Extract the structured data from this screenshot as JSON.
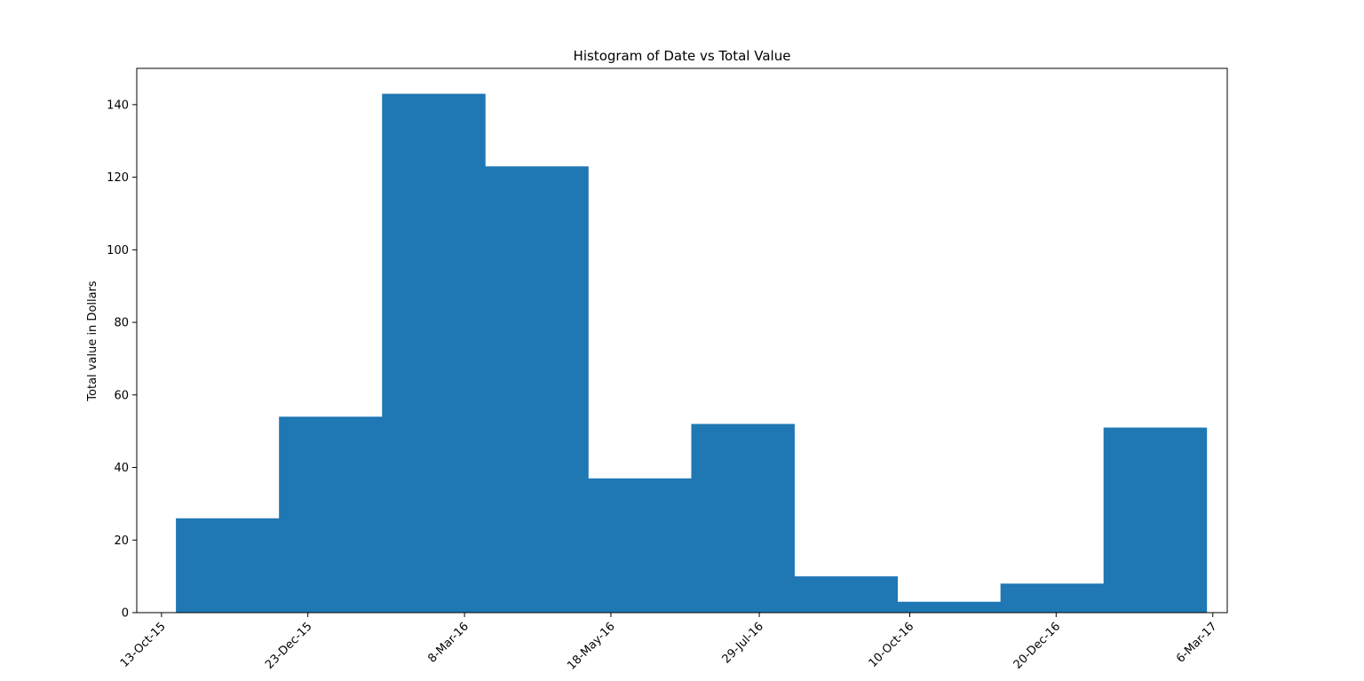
{
  "chart_data": {
    "type": "bar",
    "title": "Histogram of Date vs Total Value",
    "xlabel": "",
    "ylabel": "Total value in Dollars",
    "bar_color": "#1f77b4",
    "frame_color": "#000000",
    "background": "#ffffff",
    "grid": false,
    "legend": "none",
    "xlim": [
      "2015-10-01",
      "2017-03-13"
    ],
    "ylim": [
      0,
      150
    ],
    "yticks": [
      0,
      20,
      40,
      60,
      80,
      100,
      120,
      140
    ],
    "xticks": [
      {
        "date": "2015-10-13",
        "label": "13-Oct-15"
      },
      {
        "date": "2015-12-23",
        "label": "23-Dec-15"
      },
      {
        "date": "2016-03-08",
        "label": "8-Mar-16"
      },
      {
        "date": "2016-05-18",
        "label": "18-May-16"
      },
      {
        "date": "2016-07-29",
        "label": "29-Jul-16"
      },
      {
        "date": "2016-10-10",
        "label": "10-Oct-16"
      },
      {
        "date": "2016-12-20",
        "label": "20-Dec-16"
      },
      {
        "date": "2017-03-06",
        "label": "6-Mar-17"
      }
    ],
    "bins": [
      {
        "start": "2015-10-20",
        "end": "2015-12-09",
        "value": 26
      },
      {
        "start": "2015-12-09",
        "end": "2016-01-28",
        "value": 54
      },
      {
        "start": "2016-01-28",
        "end": "2016-03-18",
        "value": 143
      },
      {
        "start": "2016-03-18",
        "end": "2016-05-07",
        "value": 123
      },
      {
        "start": "2016-05-07",
        "end": "2016-06-26",
        "value": 37
      },
      {
        "start": "2016-06-26",
        "end": "2016-08-15",
        "value": 52
      },
      {
        "start": "2016-08-15",
        "end": "2016-10-04",
        "value": 10
      },
      {
        "start": "2016-10-04",
        "end": "2016-11-23",
        "value": 3
      },
      {
        "start": "2016-11-23",
        "end": "2017-01-12",
        "value": 8
      },
      {
        "start": "2017-01-12",
        "end": "2017-03-03",
        "value": 51
      }
    ]
  }
}
